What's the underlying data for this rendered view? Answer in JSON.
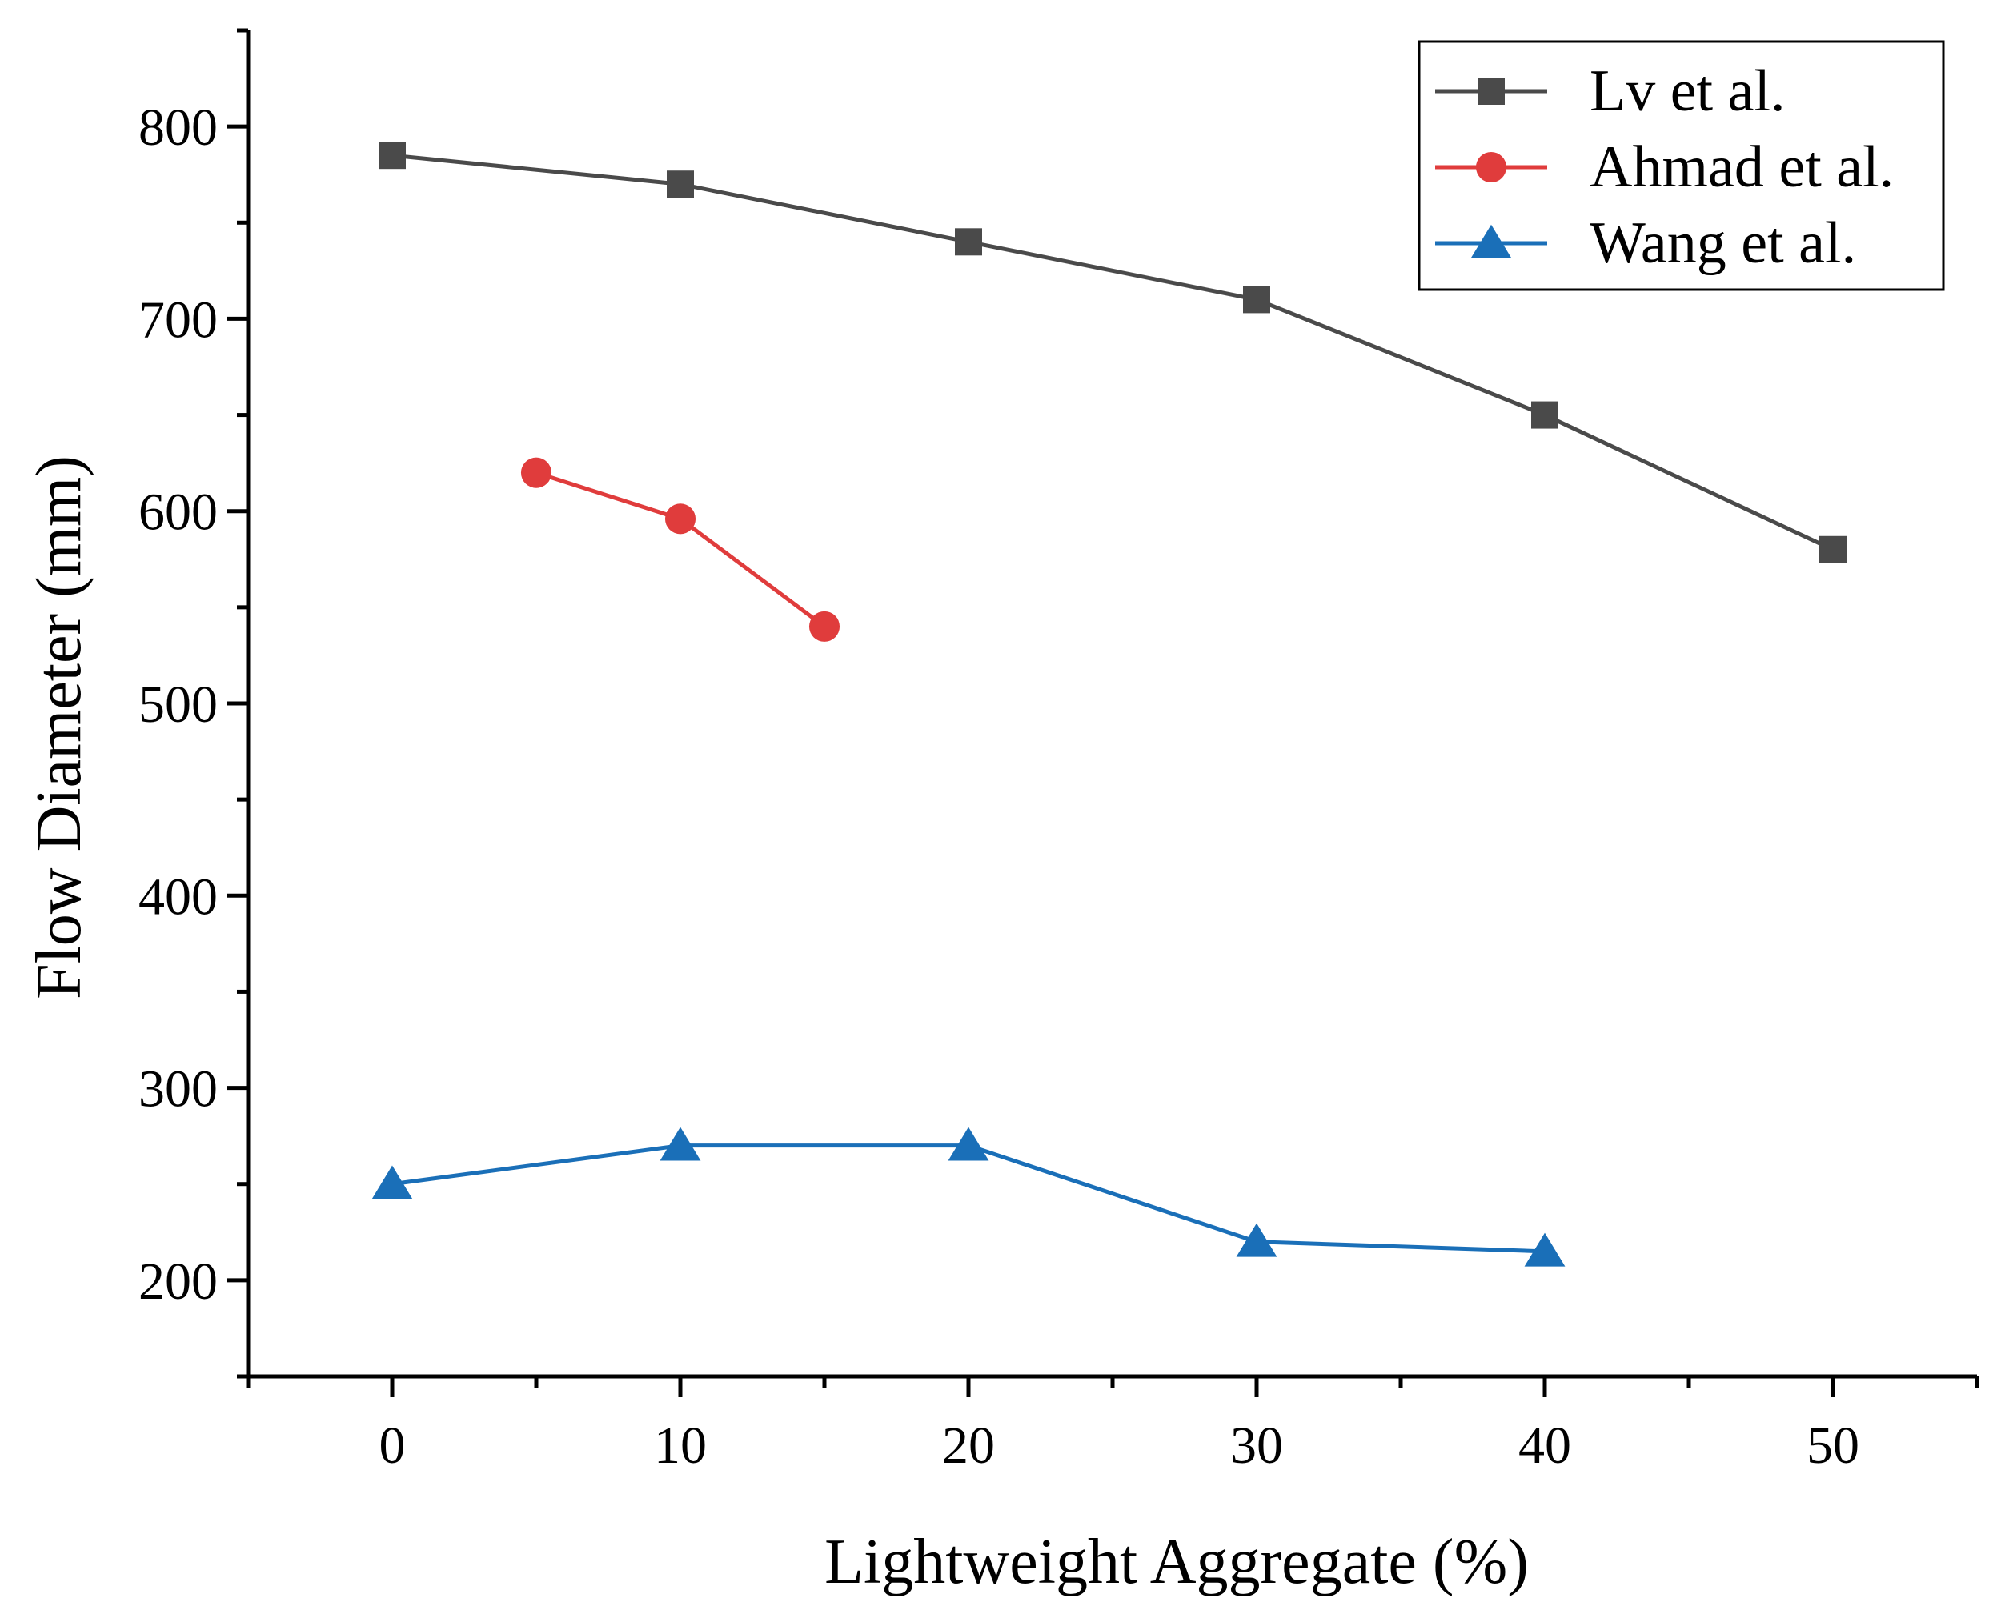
{
  "chart_data": {
    "type": "line",
    "xlabel": "Lightweight Aggregate (%)",
    "ylabel": "Flow Diameter (mm)",
    "xlim": [
      -5,
      55
    ],
    "ylim": [
      150,
      850
    ],
    "xticks": [
      0,
      10,
      20,
      30,
      40,
      50
    ],
    "yticks": [
      200,
      300,
      400,
      500,
      600,
      700,
      800
    ],
    "grid": false,
    "legend_position": "top-right",
    "series": [
      {
        "name": "Lv et al.",
        "color": "#4a4a4a",
        "marker": "square",
        "x": [
          0,
          10,
          20,
          30,
          40,
          50
        ],
        "y": [
          785,
          770,
          740,
          710,
          650,
          580
        ]
      },
      {
        "name": "Ahmad et al.",
        "color": "#e03c3c",
        "marker": "circle",
        "x": [
          5,
          10,
          15
        ],
        "y": [
          620,
          596,
          540
        ]
      },
      {
        "name": "Wang et al.",
        "color": "#1a6fb8",
        "marker": "triangle",
        "x": [
          0,
          10,
          20,
          30,
          40
        ],
        "y": [
          250,
          270,
          270,
          220,
          215
        ]
      }
    ]
  }
}
